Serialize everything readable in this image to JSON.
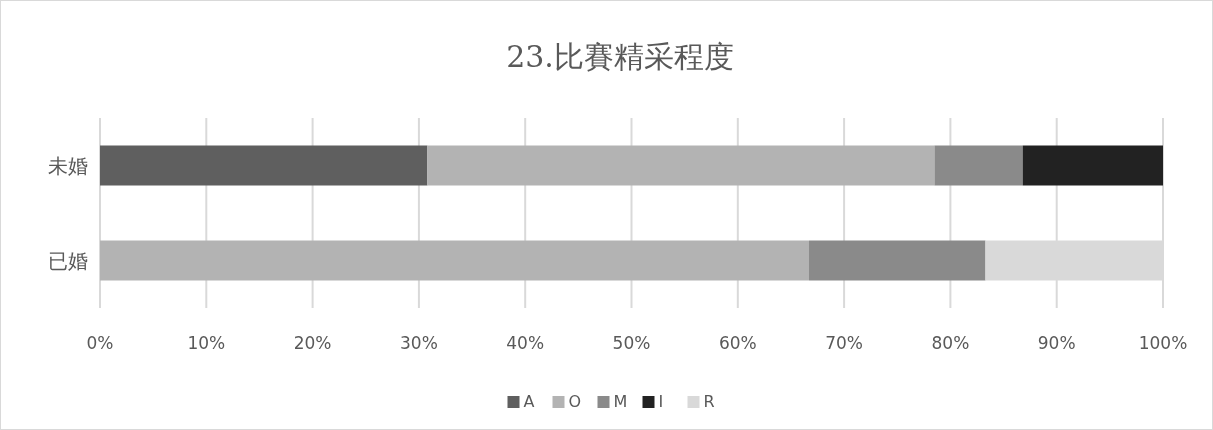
{
  "chart_data": {
    "type": "bar",
    "orientation": "horizontal",
    "stacked": true,
    "title": "23.比賽精采程度",
    "categories": [
      "未婚",
      "已婚"
    ],
    "series": [
      {
        "name": "A",
        "color": "#5f5f5f",
        "values": [
          30.8,
          null
        ]
      },
      {
        "name": "O",
        "color": "#b3b3b3",
        "values": [
          47.7,
          66.7
        ]
      },
      {
        "name": "M",
        "color": "#8a8a8a",
        "values": [
          8.3,
          16.6
        ]
      },
      {
        "name": "I",
        "color": "#222222",
        "values": [
          13.2,
          null
        ]
      },
      {
        "name": "R",
        "color": "#d9d9d9",
        "values": [
          null,
          16.7
        ]
      }
    ],
    "xlim": [
      0,
      100
    ],
    "xticks": [
      {
        "value": 0,
        "label": "0%"
      },
      {
        "value": 10,
        "label": "10%"
      },
      {
        "value": 20,
        "label": "20%"
      },
      {
        "value": 30,
        "label": "30%"
      },
      {
        "value": 40,
        "label": "40%"
      },
      {
        "value": 50,
        "label": "50%"
      },
      {
        "value": 60,
        "label": "60%"
      },
      {
        "value": 70,
        "label": "70%"
      },
      {
        "value": 80,
        "label": "80%"
      },
      {
        "value": 90,
        "label": "90%"
      },
      {
        "value": 100,
        "label": "100%"
      }
    ],
    "grid": "x",
    "legend": "bottom"
  }
}
